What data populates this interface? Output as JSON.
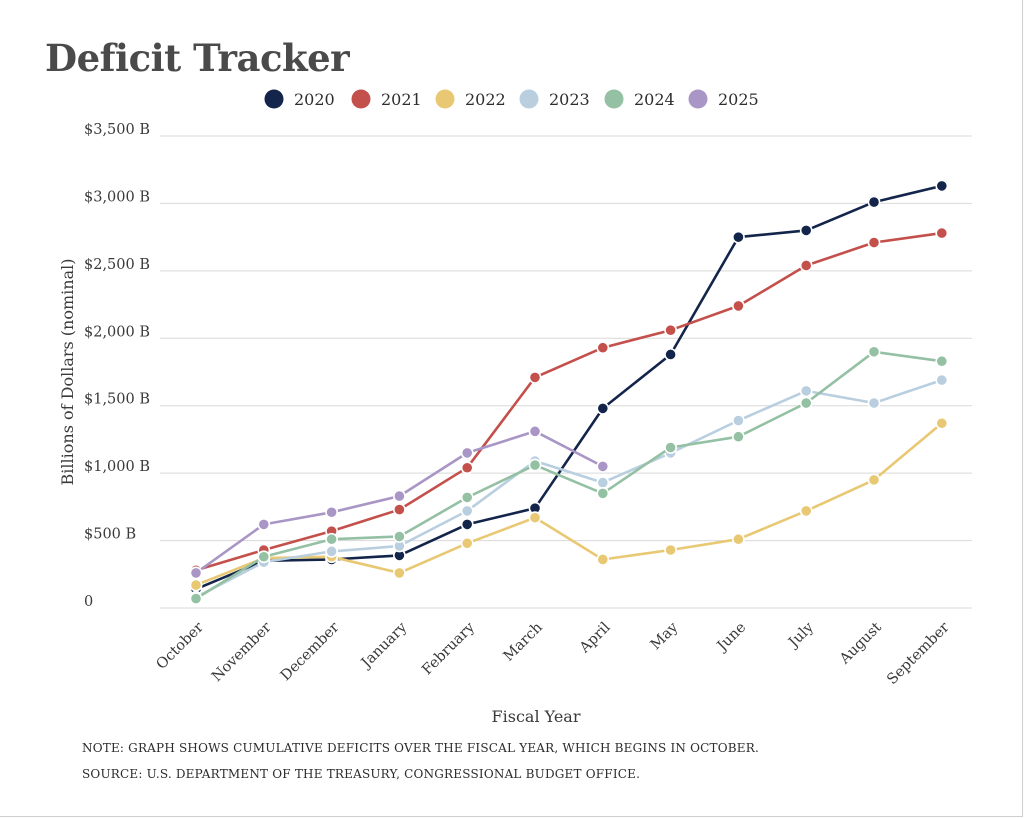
{
  "chart_data": {
    "type": "line",
    "title": "Deficit Tracker",
    "xlabel": "Fiscal Year",
    "ylabel": "Billions of Dollars (nominal)",
    "categories": [
      "October",
      "November",
      "December",
      "January",
      "February",
      "March",
      "April",
      "May",
      "June",
      "July",
      "August",
      "September"
    ],
    "ylim": [
      0,
      3500
    ],
    "yticks": [
      0,
      500,
      1000,
      1500,
      2000,
      2500,
      3000,
      3500
    ],
    "ytick_labels": [
      "0",
      "$500 B",
      "$1,000 B",
      "$1,500 B",
      "$2,000 B",
      "$2,500 B",
      "$3,000 B",
      "$3,500 B"
    ],
    "grid": true,
    "legend_position": "top-center",
    "series": [
      {
        "name": "2020",
        "color": "#13254a",
        "values": [
          140,
          350,
          360,
          390,
          620,
          740,
          1480,
          1880,
          2750,
          2800,
          3010,
          3130
        ]
      },
      {
        "name": "2021",
        "color": "#c4504c",
        "values": [
          280,
          430,
          570,
          730,
          1040,
          1710,
          1930,
          2060,
          2240,
          2540,
          2710,
          2780
        ]
      },
      {
        "name": "2022",
        "color": "#e9c873",
        "values": [
          170,
          370,
          380,
          260,
          480,
          670,
          360,
          430,
          510,
          720,
          950,
          1370
        ]
      },
      {
        "name": "2023",
        "color": "#b9cfe0",
        "values": [
          80,
          340,
          420,
          460,
          720,
          1090,
          930,
          1150,
          1390,
          1610,
          1520,
          1690
        ]
      },
      {
        "name": "2024",
        "color": "#94c0a3",
        "values": [
          70,
          380,
          510,
          530,
          820,
          1060,
          850,
          1190,
          1270,
          1520,
          1900,
          1830
        ]
      },
      {
        "name": "2025",
        "color": "#a996c6",
        "values": [
          260,
          620,
          710,
          830,
          1150,
          1310,
          1050,
          null,
          null,
          null,
          null,
          null
        ]
      }
    ]
  },
  "notes": {
    "note": "NOTE: GRAPH SHOWS CUMULATIVE DEFICITS OVER THE FISCAL YEAR, WHICH BEGINS IN OCTOBER.",
    "source": "SOURCE: U.S. DEPARTMENT OF THE TREASURY, CONGRESSIONAL BUDGET OFFICE."
  }
}
